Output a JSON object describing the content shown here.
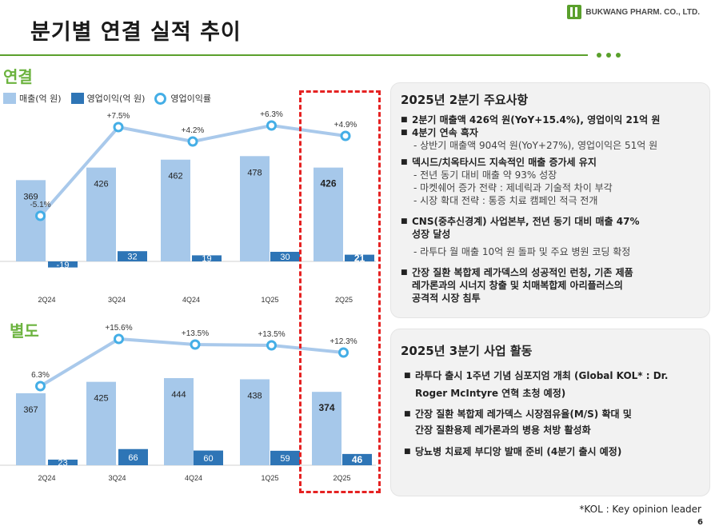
{
  "title": "분기별 연결 실적 추이",
  "logo": {
    "text": "BUKWANG PHARM. CO., LTD.",
    "icon": "bukwang-logo-icon",
    "color": "#5aa02c"
  },
  "colors": {
    "revenue": "#a6c8ea",
    "op_income": "#2e75b6",
    "margin_line": "#a9c9eb",
    "marker": "#44aee6",
    "highlight": "#e52222",
    "accent": "#6cb33f"
  },
  "legend": {
    "revenue": "매출(억 원)",
    "op_income": "영업이익(억 원)",
    "margin": "영업이익률"
  },
  "sections": {
    "consolidated": "연결",
    "separate": "별도"
  },
  "chart_data": [
    {
      "type": "bar",
      "name": "연결",
      "categories": [
        "2Q24",
        "3Q24",
        "4Q24",
        "1Q25",
        "2Q25"
      ],
      "series": [
        {
          "name": "매출(억 원)",
          "values": [
            369,
            426,
            462,
            478,
            426
          ]
        },
        {
          "name": "영업이익(억 원)",
          "values": [
            -19,
            32,
            19,
            30,
            21
          ]
        }
      ],
      "line": {
        "name": "영업이익률",
        "values": [
          -5.1,
          7.5,
          4.2,
          6.3,
          4.9
        ],
        "labels": [
          "-5.1%",
          "+7.5%",
          "+4.2%",
          "+6.3%",
          "+4.9%"
        ]
      },
      "highlight_category": "2Q25"
    },
    {
      "type": "bar",
      "name": "별도",
      "categories": [
        "2Q24",
        "3Q24",
        "4Q24",
        "1Q25",
        "2Q25"
      ],
      "series": [
        {
          "name": "매출(억 원)",
          "values": [
            367,
            425,
            444,
            438,
            374
          ]
        },
        {
          "name": "영업이익(억 원)",
          "values": [
            23,
            66,
            60,
            59,
            46
          ]
        }
      ],
      "line": {
        "name": "영업이익률",
        "values": [
          6.3,
          15.6,
          13.5,
          13.5,
          12.3
        ],
        "labels": [
          "6.3%",
          "+15.6%",
          "+13.5%",
          "+13.5%",
          "+12.3%"
        ]
      },
      "highlight_category": "2Q25"
    }
  ],
  "panel1": {
    "title": "2025년 2분기 주요사항",
    "b1": {
      "l1": "2분기 매출액 426억 원(YoY+15.4%), 영업이익 21억 원",
      "l2": "4분기 연속 흑자",
      "sub": "- 상반기 매출액 904억 원(YoY+27%), 영업이익은 51억 원"
    },
    "b2": {
      "l1": "덱시드/치옥타시드 지속적인 매출 증가세 유지",
      "subs": [
        "- 전년 동기 대비 매출 약 93% 성장",
        "- 마켓쉐어 증가 전략 : 제네릭과 기술적 차이 부각",
        "- 시장 확대 전략 : 통증 치료 캠페인 적극 전개"
      ]
    },
    "b3": {
      "l1": "CNS(중추신경계) 사업본부, 전년 동기 대비 매출 47%",
      "l2": "성장 달성",
      "sub": "- 라투다 월 매출 10억 원 돌파 및 주요 병원 코딩 확정"
    },
    "b4": {
      "l1": "간장 질환 복합제 레가덱스의 성공적인 런칭, 기존 제품",
      "l2": "레가론과의 시너지 창출 및 치매복합제 아리플러스의",
      "l3": "공격적 시장 침투"
    }
  },
  "panel2": {
    "title": "2025년 3분기 사업 활동",
    "b1": {
      "l1": "라투다 출시 1주년 기념 심포지엄 개최 (Global KOL* : Dr.",
      "l2": "Roger McIntyre 연혁 초청 예정)"
    },
    "b2": {
      "l1": "간장 질환 복합제 레가덱스 시장점유율(M/S) 확대 및",
      "l2": "간장 질환용제 레가론과의 병용 처방 활성화"
    },
    "b3": {
      "l1": "당뇨병 치료제 부디앙 발매 준비 (4분기 출시 예정)"
    }
  },
  "footnote": "*KOL : Key opinion leader",
  "page_number": "6"
}
